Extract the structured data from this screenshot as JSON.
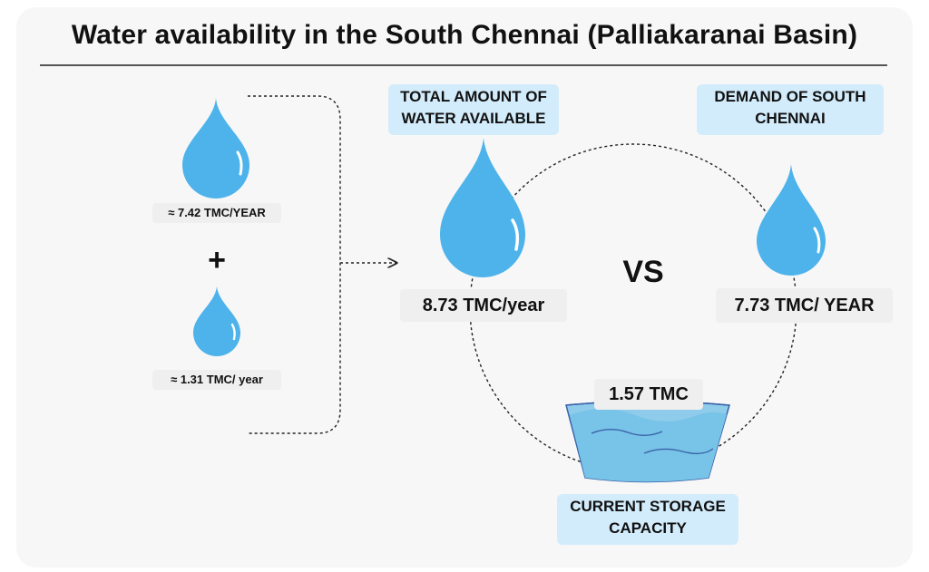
{
  "title": "Water availability in the South Chennai (Palliakaranai Basin)",
  "sources": {
    "first": {
      "value": "≈ 7.42 TMC/YEAR"
    },
    "operator": "+",
    "second": {
      "value": "≈ 1.31 TMC/ year"
    }
  },
  "comparison": {
    "total": {
      "tag": [
        "TOTAL AMOUNT OF",
        "WATER AVAILABLE"
      ],
      "value": "8.73 TMC/year"
    },
    "vs": "VS",
    "demand": {
      "tag": [
        "DEMAND OF SOUTH",
        "CHENNAI"
      ],
      "value": "7.73 TMC/ YEAR"
    },
    "storage": {
      "value": "1.57 TMC",
      "tag": [
        "CURRENT STORAGE",
        "CAPACITY"
      ]
    }
  },
  "colors": {
    "drop": "#4db3ea",
    "drop_highlight": "#ffffff",
    "tag_bg": "#d3ecfb",
    "label_bg": "#efefef",
    "water": "#78c3e8",
    "bowl": "#8fcbea",
    "wave": "#3a63a8"
  }
}
